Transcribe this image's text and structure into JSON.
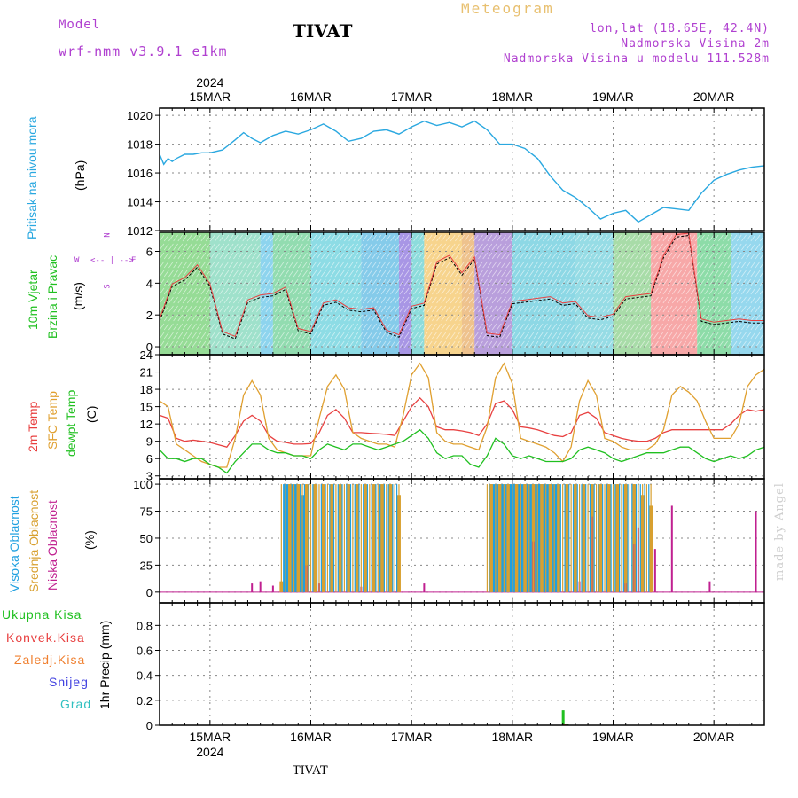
{
  "header": {
    "model_label": "Model",
    "model_name": "wrf-nmm_v3.9.1  e1km",
    "title": "TIVAT",
    "meteogram_label": "Meteogram",
    "lonlat": "lon,lat (18.65E, 42.4N)",
    "elevation": "Nadmorska Visina 2m",
    "model_elevation": "Nadmorska Visina u modelu 111.528m"
  },
  "footer": {
    "station": "TIVAT",
    "watermark": "made by Angel"
  },
  "x_axis": {
    "year": "2024",
    "days": [
      "15MAR",
      "16MAR",
      "17MAR",
      "18MAR",
      "19MAR",
      "20MAR"
    ]
  },
  "panels": {
    "pressure": {
      "ylabel": "Pritisak na nivou mora",
      "unit": "(hPa)"
    },
    "wind": {
      "ylabel_1": "10m Vjetar",
      "ylabel_2": "Brzina i Pravac",
      "unit": "(m/s)",
      "compass_n": "N",
      "compass_w": "W",
      "compass_e": "E",
      "compass_s": "S"
    },
    "temp": {
      "label_2m": "2m Temp",
      "label_sfc": "SFC Temp",
      "label_dewpt": "dewpt Temp",
      "unit": "(C)"
    },
    "cloud": {
      "label_high": "Visoka Oblacnost",
      "label_mid": "Srednja Oblacnost",
      "label_low": "Niska Oblacnost",
      "unit": "(%)"
    },
    "precip": {
      "label_total": "Ukupna Kisa",
      "label_conv": "Konvek.Kisa",
      "label_frozen": "Zaledj.Kisa",
      "label_snow": "Snijeg",
      "label_hail": "Grad",
      "unit": "1hr Precip (mm)"
    }
  },
  "colors": {
    "pressure": "#2aa8e0",
    "t2m": "#e84040",
    "tsfc": "#e0a030",
    "dewpt": "#20c020",
    "cloud_high": "#20a0e0",
    "cloud_mid": "#d8a030",
    "cloud_low": "#c02090",
    "precip_total": "#20c020",
    "precip_conv": "#e84040",
    "precip_frozen": "#f08030",
    "precip_snow": "#4040e0",
    "precip_hail": "#30c0c0",
    "label_purple": "#b040d0"
  },
  "chart_data": [
    {
      "type": "line",
      "title": "Pritisak na nivou mora",
      "ylabel": "(hPa)",
      "ylim": [
        1012,
        1020.5
      ],
      "yticks": [
        1012,
        1014,
        1016,
        1018,
        1020
      ],
      "grid": true,
      "series": [
        {
          "name": "Pritisak na nivou mora",
          "x": [
            0,
            1,
            2,
            3,
            4,
            6,
            8,
            10,
            12,
            15,
            18,
            20,
            22,
            24,
            27,
            30,
            33,
            36,
            39,
            42,
            45,
            48,
            51,
            54,
            57,
            60,
            63,
            66,
            69,
            72,
            75,
            78,
            81,
            84,
            87,
            90,
            93,
            96,
            99,
            102,
            105,
            108,
            111,
            114,
            117,
            120,
            123,
            126,
            129,
            132,
            135,
            138,
            141,
            144
          ],
          "values": [
            1017.3,
            1016.6,
            1017.0,
            1016.8,
            1017.0,
            1017.3,
            1017.3,
            1017.4,
            1017.4,
            1017.6,
            1018.3,
            1018.8,
            1018.4,
            1018.1,
            1018.6,
            1018.9,
            1018.7,
            1019.0,
            1019.4,
            1018.9,
            1018.2,
            1018.4,
            1018.9,
            1019.0,
            1018.7,
            1019.2,
            1019.6,
            1019.3,
            1019.5,
            1019.2,
            1019.6,
            1019.0,
            1018.0,
            1018.0,
            1017.7,
            1017.0,
            1015.8,
            1014.8,
            1014.3,
            1013.6,
            1012.8,
            1013.2,
            1013.4,
            1012.6,
            1013.1,
            1013.6,
            1013.5,
            1013.4,
            1014.6,
            1015.5,
            1015.9,
            1016.2,
            1016.4,
            1016.5
          ]
        }
      ]
    },
    {
      "type": "line",
      "title": "10m Vjetar Brzina i Pravac",
      "ylabel": "(m/s)",
      "ylim": [
        -0.5,
        7.2
      ],
      "yticks": [
        0,
        2,
        4,
        6
      ],
      "grid": true,
      "series": [
        {
          "name": "10m Vjetar",
          "x": [
            0,
            3,
            6,
            9,
            12,
            15,
            18,
            21,
            24,
            27,
            30,
            33,
            36,
            39,
            42,
            45,
            48,
            51,
            54,
            57,
            60,
            63,
            66,
            69,
            72,
            75,
            78,
            81,
            84,
            87,
            90,
            93,
            96,
            99,
            102,
            105,
            108,
            111,
            114,
            117,
            120,
            123,
            126,
            129,
            132,
            135,
            138,
            141,
            144
          ],
          "values": [
            1.6,
            3.8,
            4.2,
            5.0,
            3.8,
            0.8,
            0.5,
            2.8,
            3.1,
            3.2,
            3.6,
            1.0,
            0.8,
            2.6,
            2.8,
            2.3,
            2.2,
            2.3,
            0.9,
            0.6,
            2.4,
            2.6,
            5.2,
            5.6,
            4.5,
            5.5,
            0.7,
            0.6,
            2.7,
            2.8,
            2.9,
            3.0,
            2.6,
            2.7,
            1.8,
            1.7,
            1.9,
            3.0,
            3.1,
            3.2,
            5.6,
            6.9,
            7.0,
            1.6,
            1.4,
            1.5,
            1.6,
            1.5,
            1.5
          ]
        }
      ]
    },
    {
      "type": "line",
      "title": "2m Temp / SFC Temp / dewpt Temp",
      "ylabel": "(C)",
      "ylim": [
        2.5,
        24
      ],
      "yticks": [
        3,
        6,
        9,
        12,
        15,
        18,
        21,
        24
      ],
      "grid": true,
      "x": [
        0,
        2,
        4,
        6,
        8,
        10,
        12,
        14,
        16,
        18,
        20,
        22,
        24,
        26,
        28,
        30,
        32,
        34,
        36,
        38,
        40,
        42,
        44,
        46,
        48,
        50,
        52,
        54,
        56,
        58,
        60,
        62,
        64,
        66,
        68,
        70,
        72,
        74,
        76,
        78,
        80,
        82,
        84,
        86,
        88,
        90,
        92,
        94,
        96,
        98,
        100,
        102,
        104,
        106,
        108,
        110,
        112,
        114,
        116,
        118,
        120,
        122,
        124,
        126,
        128,
        130,
        132,
        134,
        136,
        138,
        140,
        142,
        144
      ],
      "series": [
        {
          "name": "2m Temp",
          "values": [
            13.5,
            13.0,
            9.5,
            9.0,
            9.2,
            9.0,
            8.8,
            8.4,
            8.0,
            10.0,
            12.5,
            13.5,
            12.5,
            10.0,
            9.0,
            8.8,
            8.5,
            8.5,
            8.6,
            10.5,
            13.5,
            14.5,
            13.0,
            10.5,
            10.5,
            10.4,
            10.3,
            10.2,
            10.0,
            12.5,
            15.0,
            16.5,
            15.0,
            11.5,
            11.0,
            11.0,
            10.8,
            10.5,
            10.0,
            12.0,
            15.5,
            16.0,
            14.5,
            11.5,
            11.3,
            11.0,
            10.5,
            10.0,
            9.8,
            10.5,
            13.5,
            14.0,
            13.0,
            10.5,
            10.0,
            9.5,
            9.2,
            9.0,
            9.0,
            9.5,
            10.5,
            11.0,
            11.0,
            11.0,
            11.0,
            11.0,
            11.0,
            11.0,
            12.0,
            13.5,
            14.5,
            14.2,
            14.5
          ]
        },
        {
          "name": "SFC Temp",
          "values": [
            16.0,
            15.0,
            8.5,
            7.5,
            6.5,
            5.5,
            5.0,
            4.5,
            4.5,
            9.5,
            17.0,
            19.5,
            17.0,
            9.5,
            7.5,
            7.0,
            6.5,
            6.5,
            6.5,
            13.0,
            18.5,
            20.5,
            18.0,
            10.5,
            9.5,
            9.0,
            8.5,
            8.5,
            8.0,
            13.5,
            20.5,
            22.5,
            20.0,
            10.5,
            9.0,
            8.5,
            8.5,
            8.0,
            7.5,
            11.5,
            20.0,
            22.5,
            19.0,
            9.5,
            9.0,
            8.5,
            8.0,
            7.0,
            5.5,
            8.0,
            16.0,
            19.5,
            17.0,
            9.5,
            9.0,
            8.0,
            7.5,
            7.5,
            7.5,
            8.5,
            11.0,
            17.0,
            18.5,
            17.5,
            16.0,
            12.5,
            9.5,
            9.5,
            9.5,
            12.0,
            18.5,
            20.5,
            21.5
          ]
        },
        {
          "name": "dewpt Temp",
          "values": [
            7.5,
            6.0,
            6.0,
            5.5,
            6.0,
            6.0,
            5.0,
            4.5,
            3.5,
            5.5,
            7.0,
            8.5,
            8.5,
            7.5,
            7.0,
            7.0,
            6.5,
            6.5,
            6.0,
            7.5,
            8.5,
            8.0,
            7.5,
            8.5,
            8.5,
            8.0,
            7.5,
            8.0,
            8.5,
            9.0,
            10.0,
            11.0,
            9.5,
            7.0,
            6.0,
            6.5,
            6.5,
            5.0,
            4.5,
            6.5,
            9.5,
            8.5,
            6.5,
            6.0,
            6.5,
            6.0,
            5.5,
            5.5,
            5.5,
            6.0,
            7.5,
            8.0,
            7.5,
            7.0,
            6.0,
            5.5,
            6.0,
            6.5,
            7.0,
            7.0,
            7.0,
            7.5,
            8.0,
            8.0,
            7.0,
            6.0,
            5.5,
            6.0,
            6.5,
            6.0,
            6.5,
            7.5,
            8.0
          ]
        }
      ]
    },
    {
      "type": "bar",
      "title": "Visoka / Srednja / Niska Oblacnost",
      "ylabel": "(%)",
      "ylim": [
        -10,
        105
      ],
      "yticks": [
        0,
        25,
        50,
        75,
        100
      ],
      "grid": true,
      "cloudy_periods": [
        [
          29,
          57
        ],
        [
          78,
          97
        ],
        [
          97,
          117
        ]
      ],
      "series": [
        {
          "name": "Visoka Oblacnost",
          "x": [
            30,
            31,
            32,
            33,
            34,
            79,
            80,
            81,
            82,
            83,
            84,
            85,
            86,
            87,
            88,
            89,
            90,
            91,
            92,
            93,
            94,
            95
          ],
          "values": [
            100,
            100,
            100,
            100,
            90,
            100,
            100,
            100,
            100,
            100,
            100,
            100,
            100,
            100,
            100,
            100,
            100,
            100,
            100,
            100,
            100,
            100
          ]
        },
        {
          "name": "Srednja Oblacnost",
          "x": [
            29,
            31,
            33,
            35,
            37,
            39,
            41,
            43,
            45,
            47,
            49,
            51,
            53,
            55,
            57,
            79,
            81,
            83,
            85,
            87,
            89,
            91,
            93,
            95,
            97,
            99,
            101,
            103,
            105,
            107,
            109,
            111,
            113,
            115,
            117
          ],
          "values": [
            10,
            100,
            100,
            100,
            100,
            100,
            100,
            100,
            100,
            100,
            100,
            100,
            100,
            100,
            90,
            100,
            100,
            100,
            100,
            100,
            100,
            100,
            100,
            100,
            100,
            100,
            100,
            100,
            100,
            100,
            100,
            100,
            100,
            90,
            80
          ]
        },
        {
          "name": "Niska Oblacnost",
          "x": [
            22,
            24,
            27,
            35,
            38,
            48,
            63,
            89,
            100,
            103,
            111,
            113,
            114,
            118,
            122,
            131,
            142
          ],
          "values": [
            8,
            10,
            6,
            25,
            8,
            5,
            8,
            47,
            10,
            70,
            8,
            45,
            60,
            40,
            80,
            10,
            75
          ]
        }
      ]
    },
    {
      "type": "bar",
      "title": "1hr Precip",
      "ylabel": "1hr Precip (mm)",
      "ylim": [
        0,
        0.98
      ],
      "yticks": [
        0,
        0.2,
        0.4,
        0.6,
        0.8
      ],
      "grid": true,
      "series": [
        {
          "name": "Ukupna Kisa",
          "x": [
            96,
            97
          ],
          "values": [
            0.12,
            0.01
          ]
        },
        {
          "name": "Konvek.Kisa",
          "x": [
            96.4
          ],
          "values": [
            0.01
          ]
        },
        {
          "name": "Zaledj.Kisa",
          "x": [],
          "values": []
        },
        {
          "name": "Snijeg",
          "x": [],
          "values": []
        },
        {
          "name": "Grad",
          "x": [],
          "values": []
        }
      ]
    }
  ]
}
